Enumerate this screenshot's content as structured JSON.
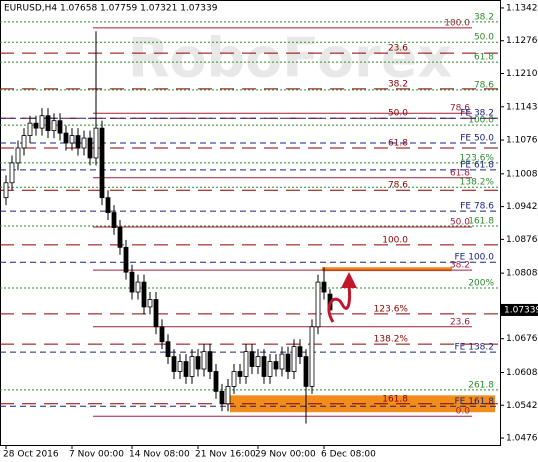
{
  "chart_data": {
    "type": "candlestick",
    "title": "EURUSD,H4  1.07658 1.07759 1.07321 1.07339",
    "watermark": "RoboForex",
    "open": [
      1.096,
      1.099,
      1.103,
      1.106,
      1.1085,
      1.111,
      1.11,
      1.1125,
      1.1095,
      1.1115,
      1.109,
      1.107,
      1.1085,
      1.106,
      1.108,
      1.104,
      1.11,
      1.096,
      1.093,
      1.09,
      1.086,
      1.081,
      1.077,
      1.079,
      1.074,
      1.0755,
      1.07,
      1.067,
      1.064,
      1.061,
      1.063,
      1.06,
      1.064,
      1.0615,
      1.065,
      1.061,
      1.057,
      1.0545,
      1.058,
      1.061,
      1.06,
      1.065,
      1.062,
      1.064,
      1.06,
      1.063,
      1.0615,
      1.0645,
      1.061,
      1.066,
      1.064,
      1.058,
      1.07,
      1.079,
      1.07658
    ],
    "high": [
      1.1005,
      1.1045,
      1.1075,
      1.11,
      1.1125,
      1.1125,
      1.114,
      1.114,
      1.113,
      1.113,
      1.1105,
      1.11,
      1.11,
      1.1095,
      1.1095,
      1.1295,
      1.1115,
      1.0975,
      1.0945,
      1.0915,
      1.0875,
      1.0825,
      1.0805,
      1.0805,
      1.077,
      1.077,
      1.0715,
      1.0685,
      1.0655,
      1.0645,
      1.0645,
      1.0655,
      1.0655,
      1.0665,
      1.0665,
      1.0625,
      1.0585,
      1.0595,
      1.0625,
      1.0625,
      1.0665,
      1.0665,
      1.0655,
      1.0655,
      1.0645,
      1.0645,
      1.066,
      1.066,
      1.0675,
      1.0675,
      1.0655,
      1.0715,
      1.0805,
      1.082,
      1.07759
    ],
    "low": [
      1.0945,
      1.0975,
      1.1015,
      1.1045,
      1.107,
      1.1085,
      1.1085,
      1.108,
      1.108,
      1.1075,
      1.1055,
      1.1055,
      1.1045,
      1.1045,
      1.1025,
      1.1025,
      1.0945,
      1.0915,
      1.0885,
      1.0845,
      1.0795,
      1.0755,
      1.0755,
      1.0725,
      1.0725,
      1.0685,
      1.0655,
      1.0625,
      1.0595,
      1.0595,
      1.0585,
      1.0585,
      1.06,
      1.06,
      1.0595,
      1.0555,
      1.053,
      1.053,
      1.0565,
      1.0585,
      1.0585,
      1.0605,
      1.0605,
      1.0585,
      1.0585,
      1.06,
      1.06,
      1.0595,
      1.0595,
      1.0625,
      1.0505,
      1.0565,
      1.0685,
      1.0755,
      1.07321
    ],
    "close": [
      1.099,
      1.103,
      1.106,
      1.1085,
      1.111,
      1.11,
      1.1125,
      1.1095,
      1.1115,
      1.109,
      1.107,
      1.1085,
      1.106,
      1.108,
      1.104,
      1.11,
      1.096,
      1.093,
      1.09,
      1.086,
      1.081,
      1.077,
      1.079,
      1.074,
      1.0755,
      1.07,
      1.067,
      1.064,
      1.061,
      1.063,
      1.06,
      1.064,
      1.0615,
      1.065,
      1.061,
      1.057,
      1.0545,
      1.058,
      1.061,
      1.06,
      1.065,
      1.062,
      1.064,
      1.06,
      1.063,
      1.0615,
      1.0645,
      1.061,
      1.066,
      1.064,
      1.058,
      1.07,
      1.079,
      1.077,
      1.07339
    ],
    "up_color": "#ffffff",
    "down_color": "#000000",
    "last_price": 1.07339,
    "ylim": [
      1.0462,
      1.1358
    ],
    "yticks": [
      {
        "value": 1.1342,
        "label": "1.13420"
      },
      {
        "value": 1.1276,
        "label": "1.12760"
      },
      {
        "value": 1.121,
        "label": "1.12100"
      },
      {
        "value": 1.1143,
        "label": "1.11430"
      },
      {
        "value": 1.1076,
        "label": "1.10760"
      },
      {
        "value": 1.1008,
        "label": "1.10080"
      },
      {
        "value": 1.0942,
        "label": "1.09420"
      },
      {
        "value": 1.0876,
        "label": "1.08760"
      },
      {
        "value": 1.0808,
        "label": "1.08080"
      },
      {
        "value": 1.0676,
        "label": "1.06760"
      },
      {
        "value": 1.0608,
        "label": "1.06080"
      },
      {
        "value": 1.0542,
        "label": "1.05420"
      },
      {
        "value": 1.0476,
        "label": "1.04760"
      }
    ],
    "xticks": [
      {
        "value": 0,
        "label": "28 Oct 2016"
      },
      {
        "value": 11,
        "label": "7 Nov 00:00"
      },
      {
        "value": 21,
        "label": "14 Nov 08:00"
      },
      {
        "value": 32,
        "label": "21 Nov 16:00"
      },
      {
        "value": 42,
        "label": "29 Nov 00:00"
      },
      {
        "value": 53,
        "label": "6 Dec 08:00"
      }
    ],
    "level_sets": {
      "retracement": {
        "color": "#a0203a",
        "levels": [
          {
            "label": "100.0",
            "value": 1.1302
          },
          {
            "label": "78.6",
            "value": 1.113
          },
          {
            "label": "61.8",
            "value": 1.1
          },
          {
            "label": "50.0",
            "value": 1.0901
          },
          {
            "label": "38.2",
            "value": 1.0814
          },
          {
            "label": "23.6",
            "value": 1.07
          },
          {
            "label": "0.0",
            "value": 1.052
          }
        ]
      },
      "projection": {
        "color": "#8b0000",
        "levels": [
          {
            "label": "23.6",
            "value": 1.1251
          },
          {
            "label": "38.2",
            "value": 1.1179
          },
          {
            "label": "50.0",
            "value": 1.112
          },
          {
            "label": "61.8",
            "value": 1.106
          },
          {
            "label": "78.6",
            "value": 1.0975
          },
          {
            "label": "100.0",
            "value": 1.0865
          },
          {
            "label": "123.6%",
            "value": 1.0726
          },
          {
            "label": "138.2%",
            "value": 1.0665
          },
          {
            "label": "161.8",
            "value": 1.0545
          }
        ]
      },
      "expansion": {
        "color": "#2e8b2e",
        "levels": [
          {
            "label": "38.2",
            "value": 1.1314
          },
          {
            "label": "50.0",
            "value": 1.1273
          },
          {
            "label": "61.8",
            "value": 1.1233
          },
          {
            "label": "78.6",
            "value": 1.1177
          },
          {
            "label": "100.0",
            "value": 1.1106
          },
          {
            "label": "123.6%",
            "value": 1.103
          },
          {
            "label": "138.2%",
            "value": 1.0981
          },
          {
            "label": "161.8",
            "value": 1.0903
          },
          {
            "label": "200%",
            "value": 1.0778
          },
          {
            "label": "261.8",
            "value": 1.0573
          }
        ]
      },
      "fe": {
        "color": "#1a237e",
        "levels": [
          {
            "label": "FE 38.2",
            "value": 1.112
          },
          {
            "label": "FE 50.0",
            "value": 1.107
          },
          {
            "label": "FE 61.8",
            "value": 1.1016
          },
          {
            "label": "FE 78.6",
            "value": 1.0933
          },
          {
            "label": "FE 100.0",
            "value": 1.083
          },
          {
            "label": "FE 138.2",
            "value": 1.0649
          },
          {
            "label": "FE 161.8",
            "value": 1.054
          }
        ]
      }
    },
    "zones": [
      {
        "from": 1.0812,
        "to": 1.082,
        "color": "#f28c1a"
      },
      {
        "from": 1.0528,
        "to": 1.0562,
        "color": "#f28c1a"
      }
    ]
  }
}
